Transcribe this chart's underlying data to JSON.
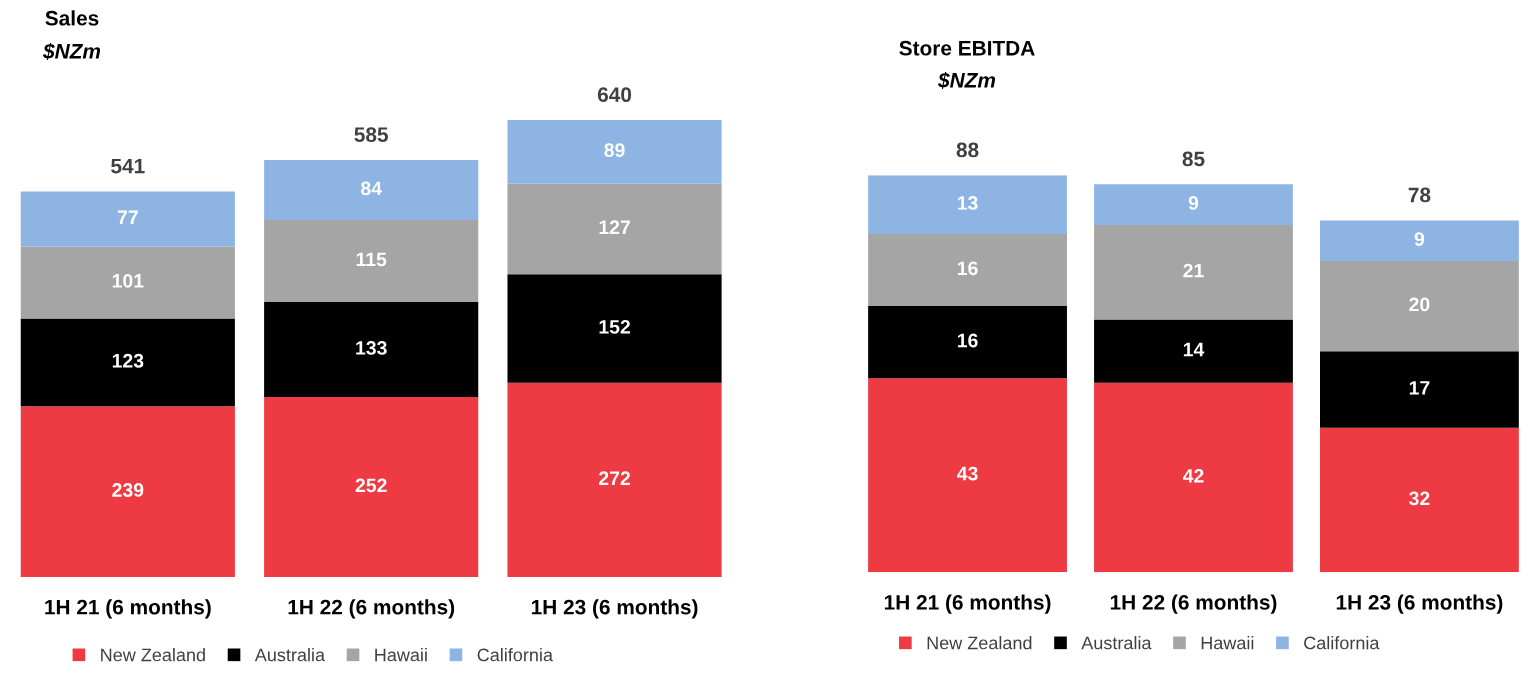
{
  "chart_data": [
    {
      "type": "bar",
      "title": "Sales",
      "subtitle": "$NZm",
      "stacked": true,
      "data_labels": true,
      "legend": "bottom",
      "grid": false,
      "categories": [
        "1H 21 (6 months)",
        "1H 22 (6 months)",
        "1H 23 (6 months)"
      ],
      "series": [
        {
          "name": "New Zealand",
          "color": "#ee3a43",
          "values": [
            239,
            252,
            272
          ]
        },
        {
          "name": "Australia",
          "color": "#000000",
          "values": [
            123,
            133,
            152
          ]
        },
        {
          "name": "Hawaii",
          "color": "#a5a5a5",
          "values": [
            101,
            115,
            127
          ]
        },
        {
          "name": "California",
          "color": "#8eb4e3",
          "values": [
            77,
            84,
            89
          ]
        }
      ],
      "totals": [
        "541",
        "585",
        "640"
      ]
    },
    {
      "type": "bar",
      "title": "Store EBITDA",
      "subtitle": "$NZm",
      "stacked": true,
      "data_labels": true,
      "legend": "bottom",
      "grid": false,
      "categories": [
        "1H 21 (6 months)",
        "1H 22 (6 months)",
        "1H 23 (6 months)"
      ],
      "series": [
        {
          "name": "New Zealand",
          "color": "#ee3a43",
          "values": [
            43,
            42,
            32
          ]
        },
        {
          "name": "Australia",
          "color": "#000000",
          "values": [
            16,
            14,
            17
          ]
        },
        {
          "name": "Hawaii",
          "color": "#a5a5a5",
          "values": [
            16,
            21,
            20
          ]
        },
        {
          "name": "California",
          "color": "#8eb4e3",
          "values": [
            13,
            9,
            9
          ]
        }
      ],
      "totals": [
        "88",
        "85",
        "78"
      ]
    }
  ]
}
